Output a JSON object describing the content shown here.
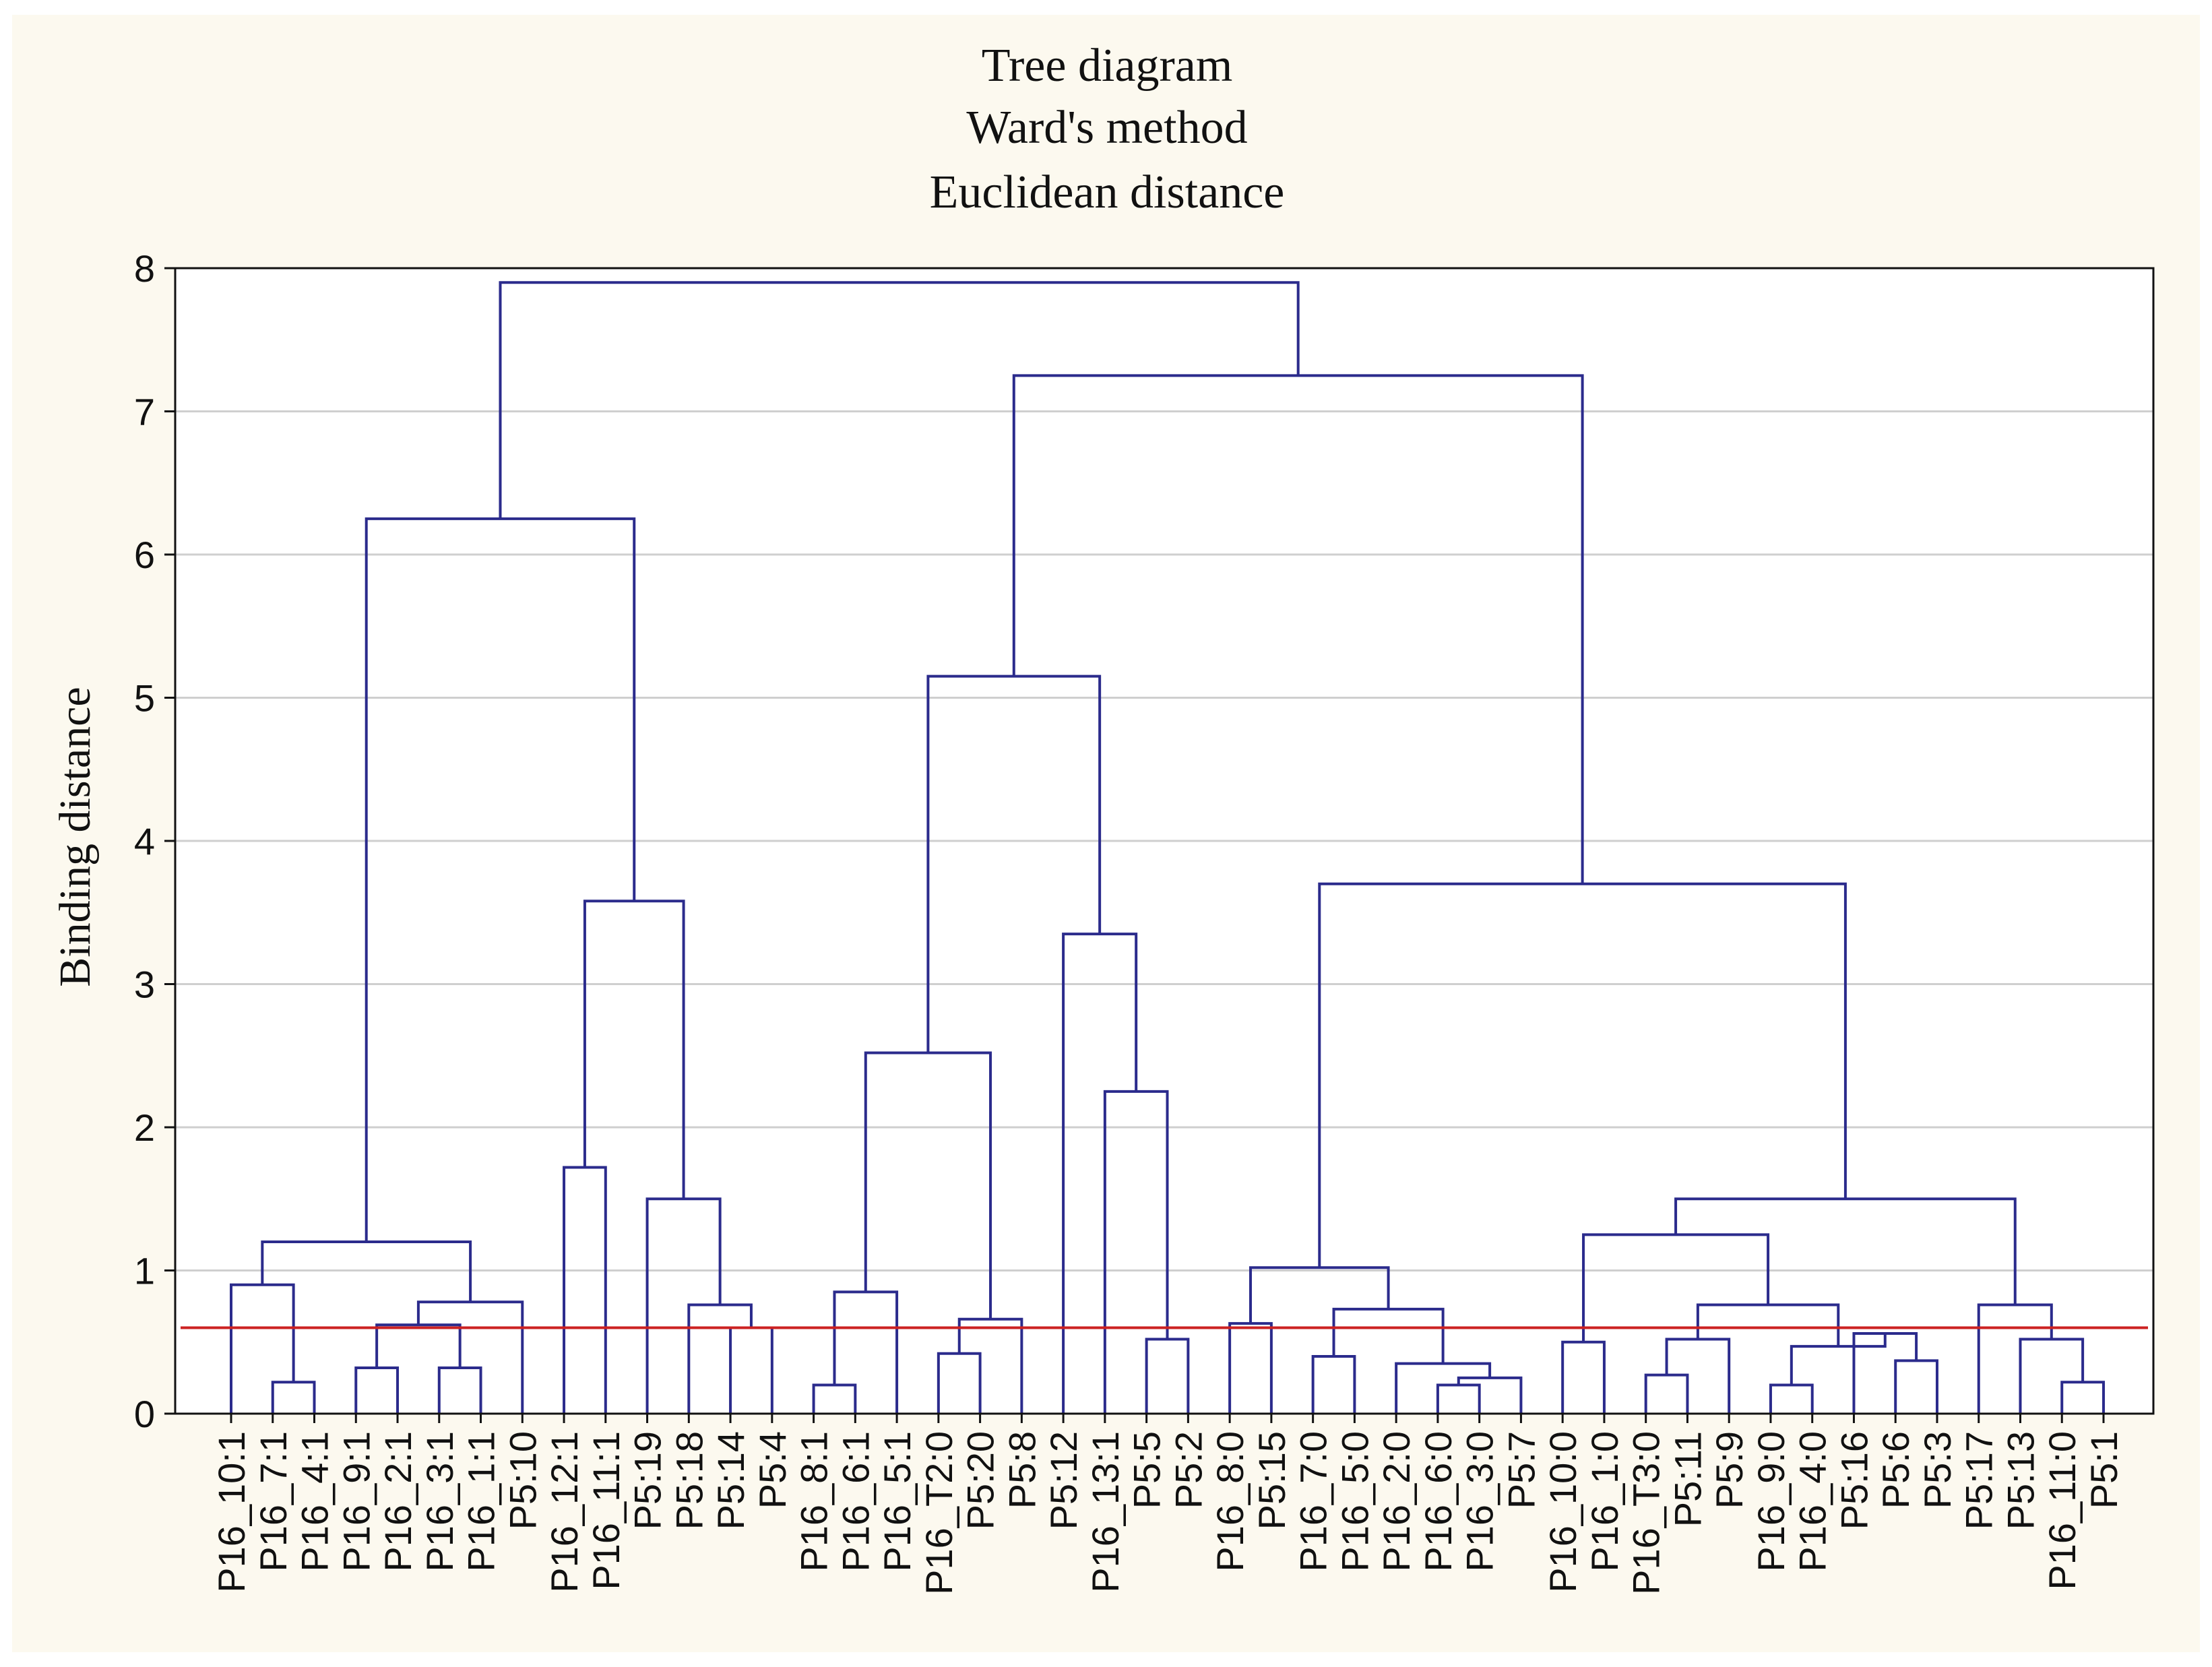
{
  "chart_data": {
    "type": "dendrogram",
    "title_lines": [
      "Tree diagram",
      "Ward's method",
      "Euclidean distance"
    ],
    "ylabel": "Binding distance",
    "ylim": [
      0,
      8
    ],
    "yticks": [
      "0",
      "1",
      "2",
      "3",
      "4",
      "5",
      "6",
      "7",
      "8"
    ],
    "grid": true,
    "cut_line": 0.6,
    "leaves": [
      "P16_10:1",
      "P16_7:1",
      "P16_4:1",
      "P16_9:1",
      "P16_2:1",
      "P16_3:1",
      "P16_1:1",
      "P5:10",
      "P16_12:1",
      "P16_11:1",
      "P5:19",
      "P5:18",
      "P5:14",
      "P5:4",
      "P16_8:1",
      "P16_6:1",
      "P16_5:1",
      "P16_T2:0",
      "P5:20",
      "P5:8",
      "P5:12",
      "P16_13:1",
      "P5:5",
      "P5:2",
      "P16_8:0",
      "P5:15",
      "P16_7:0",
      "P16_5:0",
      "P16_2:0",
      "P16_6:0",
      "P16_3:0",
      "P5:7",
      "P16_10:0",
      "P16_1:0",
      "P16_T3:0",
      "P5:11",
      "P5:9",
      "P16_9:0",
      "P16_4:0",
      "P5:16",
      "P5:6",
      "P5:3",
      "P5:17",
      "P5:13",
      "P16_11:0",
      "P5:1"
    ],
    "merges": [
      {
        "a": "L1",
        "b": "L2",
        "h": 0.22
      },
      {
        "a": "L0",
        "b": "M0",
        "h": 0.9
      },
      {
        "a": "L3",
        "b": "L4",
        "h": 0.32
      },
      {
        "a": "L5",
        "b": "L6",
        "h": 0.32
      },
      {
        "a": "M2",
        "b": "M3",
        "h": 0.62
      },
      {
        "a": "M4",
        "b": "L7",
        "h": 0.78
      },
      {
        "a": "M1",
        "b": "M5",
        "h": 1.2
      },
      {
        "a": "L12",
        "b": "L13",
        "h": 0.6
      },
      {
        "a": "L11",
        "b": "M7",
        "h": 0.76
      },
      {
        "a": "L10",
        "b": "M8",
        "h": 1.5
      },
      {
        "a": "L8",
        "b": "L9",
        "h": 1.72
      },
      {
        "a": "M10",
        "b": "M9",
        "h": 3.58
      },
      {
        "a": "M6",
        "b": "M11",
        "h": 6.25
      },
      {
        "a": "L14",
        "b": "L15",
        "h": 0.2
      },
      {
        "a": "M13",
        "b": "L16",
        "h": 0.85
      },
      {
        "a": "L17",
        "b": "L18",
        "h": 0.42
      },
      {
        "a": "M15",
        "b": "L19",
        "h": 0.66
      },
      {
        "a": "M14",
        "b": "M16",
        "h": 2.52
      },
      {
        "a": "L22",
        "b": "L23",
        "h": 0.52
      },
      {
        "a": "L21",
        "b": "M18",
        "h": 2.25
      },
      {
        "a": "L20",
        "b": "M19",
        "h": 3.35
      },
      {
        "a": "M17",
        "b": "M20",
        "h": 5.15
      },
      {
        "a": "L24",
        "b": "L25",
        "h": 0.63
      },
      {
        "a": "L29",
        "b": "L30",
        "h": 0.2
      },
      {
        "a": "M23",
        "b": "L31",
        "h": 0.25
      },
      {
        "a": "L28",
        "b": "M24",
        "h": 0.35
      },
      {
        "a": "L26",
        "b": "L27",
        "h": 0.4
      },
      {
        "a": "M26",
        "b": "M25",
        "h": 0.73
      },
      {
        "a": "M22",
        "b": "M27",
        "h": 1.02
      },
      {
        "a": "L32",
        "b": "L33",
        "h": 0.5
      },
      {
        "a": "L34",
        "b": "L35",
        "h": 0.27
      },
      {
        "a": "M30",
        "b": "L36",
        "h": 0.52
      },
      {
        "a": "L37",
        "b": "L38",
        "h": 0.2
      },
      {
        "a": "L40",
        "b": "L41",
        "h": 0.37
      },
      {
        "a": "L39",
        "b": "M33",
        "h": 0.56
      },
      {
        "a": "M32",
        "b": "M34",
        "h": 0.47
      },
      {
        "a": "M31",
        "b": "M35",
        "h": 0.76
      },
      {
        "a": "M29",
        "b": "M36",
        "h": 1.25
      },
      {
        "a": "L44",
        "b": "L45",
        "h": 0.22
      },
      {
        "a": "L43",
        "b": "M38",
        "h": 0.52
      },
      {
        "a": "L42",
        "b": "M39",
        "h": 0.76
      },
      {
        "a": "M37",
        "b": "M40",
        "h": 1.5
      },
      {
        "a": "M28",
        "b": "M41",
        "h": 3.7
      },
      {
        "a": "M21",
        "b": "M42",
        "h": 7.25
      },
      {
        "a": "M12",
        "b": "M43",
        "h": 7.9
      }
    ]
  },
  "colors": {
    "background": "#fcf9ef",
    "plot_background": "#ffffff",
    "tree": "#2b2b8c",
    "cut_line": "#cc2222",
    "grid": "#cfcfcf",
    "axis": "#111111"
  }
}
